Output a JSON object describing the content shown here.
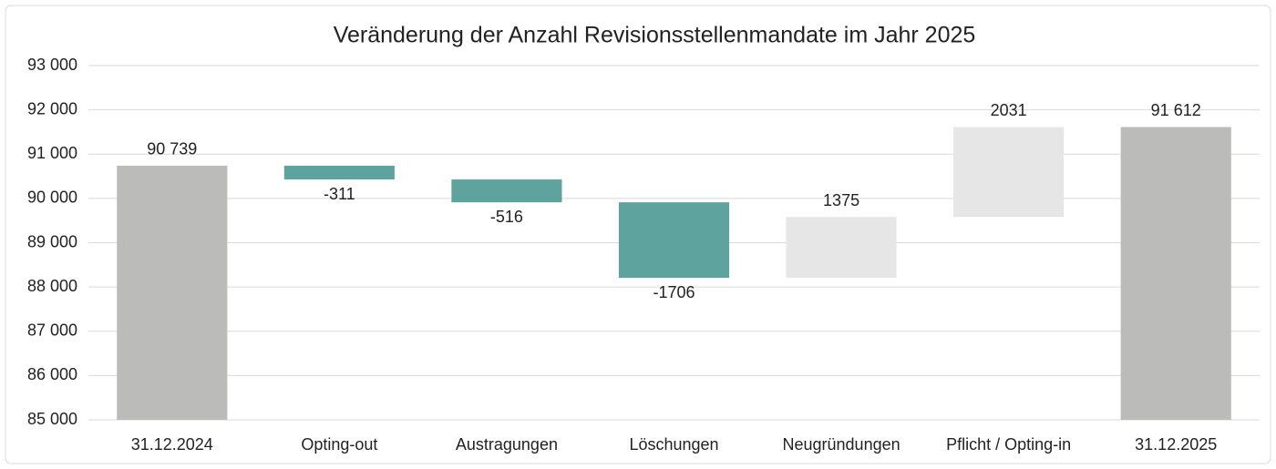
{
  "chart_data": {
    "type": "waterfall",
    "title": "Veränderung der Anzahl Revisionsstellenmandate im Jahr 2025",
    "categories": [
      "31.12.2024",
      "Opting-out",
      "Austragungen",
      "Löschungen",
      "Neugründungen",
      "Pflicht / Opting-in",
      "31.12.2025"
    ],
    "values": [
      90739,
      -311,
      -516,
      -1706,
      1375,
      2031,
      91612
    ],
    "value_labels": [
      "90 739",
      "-311",
      "-516",
      "-1706",
      "1375",
      "2031",
      "91 612"
    ],
    "total_color": "#bbbbba",
    "decrease_color": "#5fa39e",
    "increase_color": "#e6e6e6",
    "ylim": [
      85000,
      93000
    ],
    "yticks": [
      {
        "value": 85000,
        "label": "85 000"
      },
      {
        "value": 86000,
        "label": "86 000"
      },
      {
        "value": 87000,
        "label": "87 000"
      },
      {
        "value": 88000,
        "label": "88 000"
      },
      {
        "value": 89000,
        "label": "89 000"
      },
      {
        "value": 90000,
        "label": "90 000"
      },
      {
        "value": 91000,
        "label": "91 000"
      },
      {
        "value": 92000,
        "label": "92 000"
      },
      {
        "value": 93000,
        "label": "93 000"
      }
    ],
    "grid": true
  }
}
